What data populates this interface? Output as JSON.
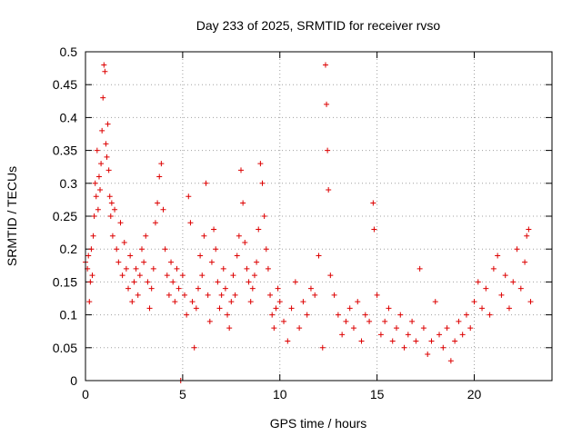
{
  "chart_data": {
    "type": "scatter",
    "title": "Day 233 of 2025, SRMTID for receiver rvso",
    "xlabel": "GPS time / hours",
    "ylabel": "SRMTID / TECUs",
    "xlim": [
      0,
      24
    ],
    "ylim": [
      0,
      0.5
    ],
    "x_ticks": [
      0,
      5,
      10,
      15,
      20
    ],
    "y_ticks": [
      0,
      0.05,
      0.1,
      0.15,
      0.2,
      0.25,
      0.3,
      0.35,
      0.4,
      0.45,
      0.5
    ],
    "x_tick_labels": [
      "0",
      "5",
      "10",
      "15",
      "20"
    ],
    "y_tick_labels": [
      "0",
      "0.05",
      "0.1",
      "0.15",
      "0.2",
      "0.25",
      "0.3",
      "0.35",
      "0.4",
      "0.45",
      "0.5"
    ],
    "grid": true,
    "marker": "plus",
    "color": "#dd0000",
    "series": [
      {
        "name": "SRMTID",
        "points": [
          [
            0.0,
            0.18
          ],
          [
            0.1,
            0.17
          ],
          [
            0.15,
            0.19
          ],
          [
            0.2,
            0.12
          ],
          [
            0.25,
            0.15
          ],
          [
            0.3,
            0.2
          ],
          [
            0.35,
            0.16
          ],
          [
            0.4,
            0.22
          ],
          [
            0.45,
            0.25
          ],
          [
            0.5,
            0.3
          ],
          [
            0.55,
            0.28
          ],
          [
            0.6,
            0.35
          ],
          [
            0.65,
            0.26
          ],
          [
            0.7,
            0.31
          ],
          [
            0.75,
            0.29
          ],
          [
            0.8,
            0.33
          ],
          [
            0.85,
            0.38
          ],
          [
            0.9,
            0.43
          ],
          [
            0.95,
            0.48
          ],
          [
            1.0,
            0.47
          ],
          [
            1.05,
            0.36
          ],
          [
            1.1,
            0.34
          ],
          [
            1.15,
            0.39
          ],
          [
            1.2,
            0.32
          ],
          [
            1.25,
            0.28
          ],
          [
            1.3,
            0.25
          ],
          [
            1.35,
            0.27
          ],
          [
            1.4,
            0.22
          ],
          [
            1.5,
            0.26
          ],
          [
            1.6,
            0.2
          ],
          [
            1.7,
            0.18
          ],
          [
            1.8,
            0.24
          ],
          [
            1.9,
            0.16
          ],
          [
            2.0,
            0.21
          ],
          [
            2.1,
            0.17
          ],
          [
            2.2,
            0.14
          ],
          [
            2.3,
            0.19
          ],
          [
            2.4,
            0.12
          ],
          [
            2.5,
            0.15
          ],
          [
            2.6,
            0.17
          ],
          [
            2.7,
            0.13
          ],
          [
            2.8,
            0.16
          ],
          [
            2.9,
            0.2
          ],
          [
            3.0,
            0.18
          ],
          [
            3.1,
            0.22
          ],
          [
            3.2,
            0.15
          ],
          [
            3.3,
            0.11
          ],
          [
            3.4,
            0.14
          ],
          [
            3.5,
            0.17
          ],
          [
            3.6,
            0.24
          ],
          [
            3.7,
            0.27
          ],
          [
            3.8,
            0.31
          ],
          [
            3.9,
            0.33
          ],
          [
            4.0,
            0.26
          ],
          [
            4.1,
            0.2
          ],
          [
            4.2,
            0.16
          ],
          [
            4.3,
            0.13
          ],
          [
            4.4,
            0.18
          ],
          [
            4.5,
            0.15
          ],
          [
            4.6,
            0.12
          ],
          [
            4.7,
            0.17
          ],
          [
            4.8,
            0.14
          ],
          [
            4.9,
            0.0
          ],
          [
            5.0,
            0.16
          ],
          [
            5.1,
            0.13
          ],
          [
            5.2,
            0.1
          ],
          [
            5.3,
            0.28
          ],
          [
            5.4,
            0.24
          ],
          [
            5.5,
            0.12
          ],
          [
            5.6,
            0.05
          ],
          [
            5.7,
            0.11
          ],
          [
            5.8,
            0.14
          ],
          [
            5.9,
            0.19
          ],
          [
            6.0,
            0.16
          ],
          [
            6.1,
            0.22
          ],
          [
            6.2,
            0.3
          ],
          [
            6.3,
            0.13
          ],
          [
            6.4,
            0.09
          ],
          [
            6.5,
            0.18
          ],
          [
            6.6,
            0.23
          ],
          [
            6.7,
            0.2
          ],
          [
            6.8,
            0.15
          ],
          [
            6.9,
            0.11
          ],
          [
            7.0,
            0.13
          ],
          [
            7.1,
            0.17
          ],
          [
            7.2,
            0.14
          ],
          [
            7.3,
            0.1
          ],
          [
            7.4,
            0.08
          ],
          [
            7.5,
            0.12
          ],
          [
            7.6,
            0.16
          ],
          [
            7.7,
            0.13
          ],
          [
            7.8,
            0.19
          ],
          [
            7.9,
            0.22
          ],
          [
            8.0,
            0.32
          ],
          [
            8.1,
            0.27
          ],
          [
            8.2,
            0.21
          ],
          [
            8.3,
            0.17
          ],
          [
            8.4,
            0.15
          ],
          [
            8.5,
            0.12
          ],
          [
            8.6,
            0.14
          ],
          [
            8.7,
            0.16
          ],
          [
            8.8,
            0.18
          ],
          [
            8.9,
            0.23
          ],
          [
            9.0,
            0.33
          ],
          [
            9.1,
            0.3
          ],
          [
            9.2,
            0.25
          ],
          [
            9.3,
            0.2
          ],
          [
            9.4,
            0.17
          ],
          [
            9.5,
            0.13
          ],
          [
            9.6,
            0.1
          ],
          [
            9.7,
            0.08
          ],
          [
            9.8,
            0.11
          ],
          [
            9.9,
            0.14
          ],
          [
            10.0,
            0.12
          ],
          [
            10.2,
            0.09
          ],
          [
            10.4,
            0.06
          ],
          [
            10.6,
            0.11
          ],
          [
            10.8,
            0.15
          ],
          [
            11.0,
            0.08
          ],
          [
            11.2,
            0.12
          ],
          [
            11.4,
            0.1
          ],
          [
            11.6,
            0.14
          ],
          [
            11.8,
            0.13
          ],
          [
            12.0,
            0.19
          ],
          [
            12.2,
            0.05
          ],
          [
            12.35,
            0.48
          ],
          [
            12.4,
            0.42
          ],
          [
            12.45,
            0.35
          ],
          [
            12.5,
            0.29
          ],
          [
            12.6,
            0.16
          ],
          [
            12.8,
            0.13
          ],
          [
            13.0,
            0.1
          ],
          [
            13.2,
            0.07
          ],
          [
            13.4,
            0.09
          ],
          [
            13.6,
            0.11
          ],
          [
            13.8,
            0.08
          ],
          [
            14.0,
            0.12
          ],
          [
            14.2,
            0.06
          ],
          [
            14.4,
            0.1
          ],
          [
            14.6,
            0.09
          ],
          [
            14.8,
            0.27
          ],
          [
            14.85,
            0.23
          ],
          [
            15.0,
            0.13
          ],
          [
            15.2,
            0.07
          ],
          [
            15.4,
            0.09
          ],
          [
            15.6,
            0.11
          ],
          [
            15.8,
            0.06
          ],
          [
            16.0,
            0.08
          ],
          [
            16.2,
            0.1
          ],
          [
            16.4,
            0.05
          ],
          [
            16.6,
            0.07
          ],
          [
            16.8,
            0.09
          ],
          [
            17.0,
            0.06
          ],
          [
            17.2,
            0.17
          ],
          [
            17.4,
            0.08
          ],
          [
            17.6,
            0.04
          ],
          [
            17.8,
            0.06
          ],
          [
            18.0,
            0.12
          ],
          [
            18.2,
            0.07
          ],
          [
            18.4,
            0.05
          ],
          [
            18.6,
            0.08
          ],
          [
            18.8,
            0.03
          ],
          [
            19.0,
            0.06
          ],
          [
            19.2,
            0.09
          ],
          [
            19.4,
            0.07
          ],
          [
            19.6,
            0.1
          ],
          [
            19.8,
            0.08
          ],
          [
            20.0,
            0.12
          ],
          [
            20.2,
            0.15
          ],
          [
            20.4,
            0.11
          ],
          [
            20.6,
            0.14
          ],
          [
            20.8,
            0.1
          ],
          [
            21.0,
            0.17
          ],
          [
            21.2,
            0.19
          ],
          [
            21.4,
            0.13
          ],
          [
            21.6,
            0.16
          ],
          [
            21.8,
            0.11
          ],
          [
            22.0,
            0.15
          ],
          [
            22.2,
            0.2
          ],
          [
            22.4,
            0.14
          ],
          [
            22.6,
            0.18
          ],
          [
            22.7,
            0.22
          ],
          [
            22.8,
            0.23
          ],
          [
            22.9,
            0.12
          ]
        ]
      }
    ]
  }
}
